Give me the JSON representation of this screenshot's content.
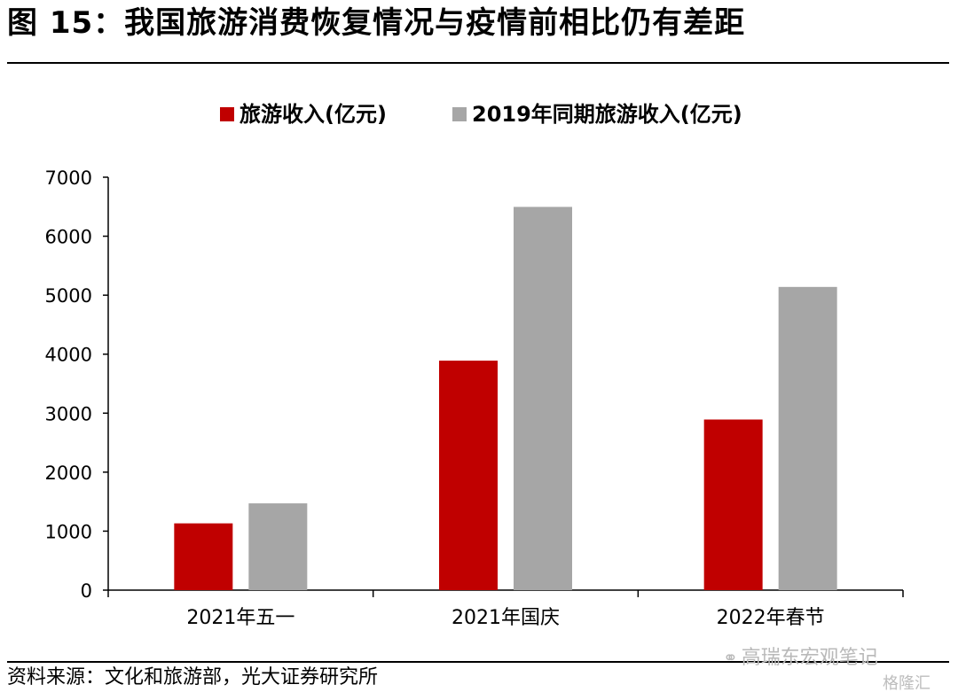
{
  "figure": {
    "title": "图 15：我国旅游消费恢复情况与疫情前相比仍有差距",
    "source": "资料来源：文化和旅游部，光大证券研究所",
    "watermark": "高瑞东宏观笔记",
    "watermark_logo": "格隆汇"
  },
  "colors": {
    "series1": "#c00000",
    "series2": "#a6a6a6"
  },
  "chart_data": {
    "type": "bar",
    "title": "",
    "xlabel": "",
    "ylabel": "",
    "categories": [
      "2021年五一",
      "2021年国庆",
      "2022年春节"
    ],
    "series": [
      {
        "name": "旅游收入(亿元)",
        "values": [
          1132,
          3891,
          2892
        ]
      },
      {
        "name": "2019年同期旅游收入(亿元)",
        "values": [
          1471,
          6497,
          5140
        ]
      }
    ],
    "ylim": [
      0,
      7000
    ],
    "yticks": [
      0,
      1000,
      2000,
      3000,
      4000,
      5000,
      6000,
      7000
    ],
    "grid": false,
    "legend": "top-center"
  }
}
